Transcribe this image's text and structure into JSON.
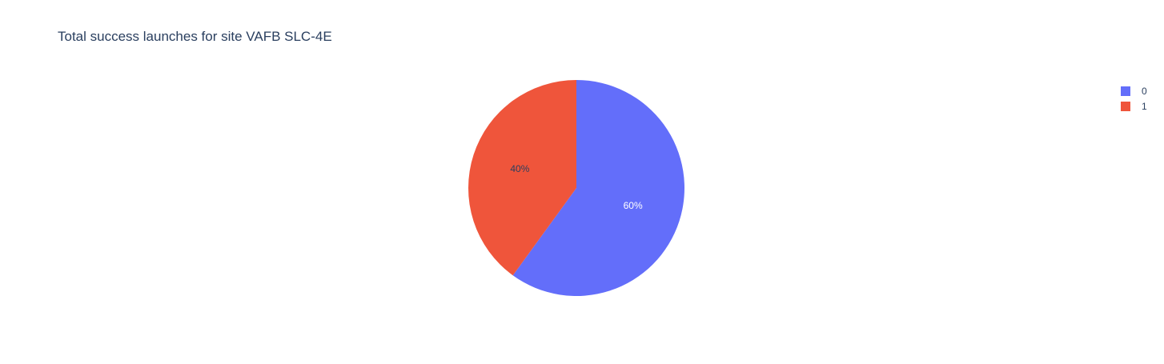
{
  "chart_data": {
    "type": "pie",
    "title": "Total success launches for site VAFB SLC-4E",
    "labels": [
      "0",
      "1"
    ],
    "values": [
      60,
      40
    ],
    "percent_labels": [
      "60%",
      "40%"
    ],
    "colors": [
      "#636efa",
      "#ef553b"
    ],
    "text_colors": [
      "#ffffff",
      "#2a3f5f"
    ],
    "direction": "clockwise",
    "start_angle_deg": 90,
    "legend_placement": "top-right"
  }
}
